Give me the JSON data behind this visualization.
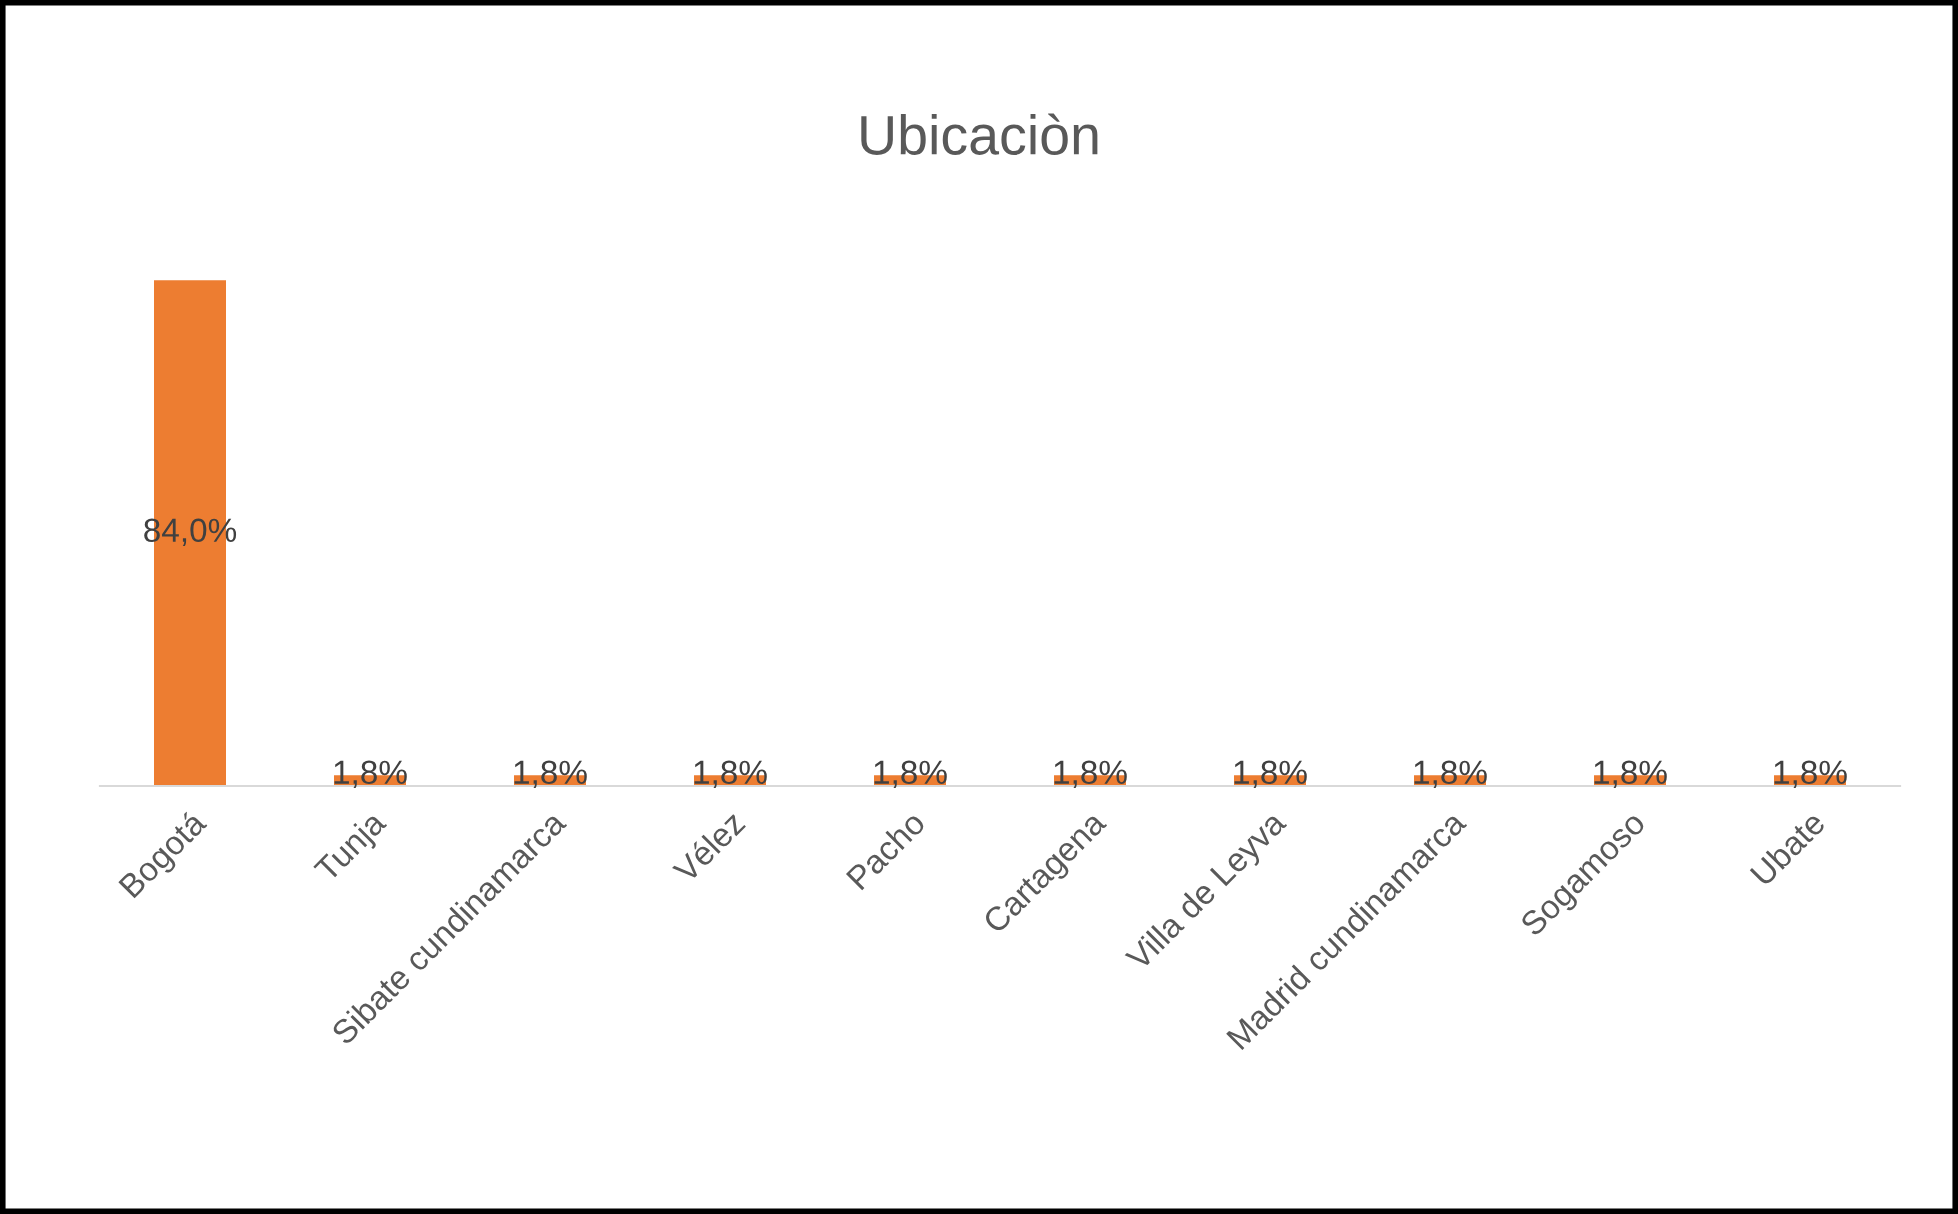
{
  "chart_data": {
    "type": "bar",
    "title": "Ubicaciòn",
    "categories": [
      "Bogotá",
      "Tunja",
      "Sibate cundinamarca",
      "Vélez",
      "Pacho",
      "Cartagena",
      "Villa de Leyva",
      "Madrid cundinamarca",
      "Sogamoso",
      "Ubate"
    ],
    "values": [
      84.0,
      1.8,
      1.8,
      1.8,
      1.8,
      1.8,
      1.8,
      1.8,
      1.8,
      1.8
    ],
    "value_labels": [
      "84,0%",
      "1,8%",
      "1,8%",
      "1,8%",
      "1,8%",
      "1,8%",
      "1,8%",
      "1,8%",
      "1,8%",
      "1,8%"
    ],
    "color": "#ed7d31",
    "grid": false,
    "legend": false
  }
}
